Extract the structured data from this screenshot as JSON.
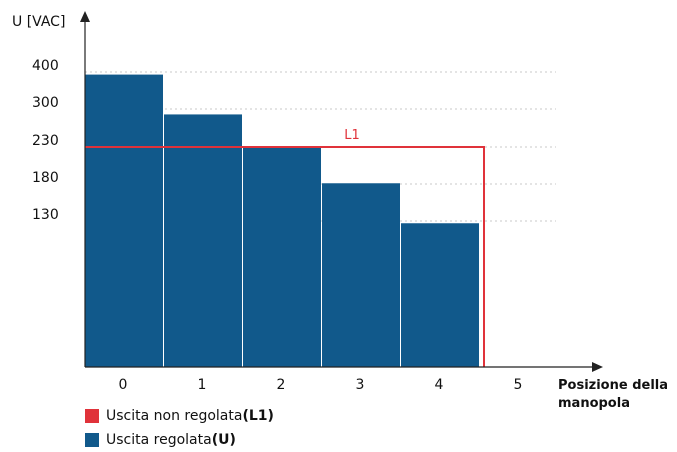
{
  "chart_data": {
    "type": "bar",
    "ylabel": "U [VAC]",
    "xlabel_line1": "Posizione della",
    "xlabel_line2": "manopola",
    "x_ticks": [
      "0",
      "1",
      "2",
      "3",
      "4",
      "5"
    ],
    "y_ticks": [
      400,
      300,
      230,
      180,
      130
    ],
    "grid": "dotted horizontal",
    "series": [
      {
        "name": "Uscita regolata",
        "name_bold": "(U)",
        "color": "#11598b",
        "categories": [
          "0",
          "1",
          "2",
          "3",
          "4"
        ],
        "values": [
          393,
          290,
          230,
          181,
          128
        ]
      }
    ],
    "lines": [
      {
        "name": "Uscita non regolata",
        "name_bold": "(L1)",
        "label": "L1",
        "color": "#e0323a",
        "value": 230,
        "x_end": 4.55
      }
    ],
    "ylim": [
      0,
      400
    ]
  }
}
